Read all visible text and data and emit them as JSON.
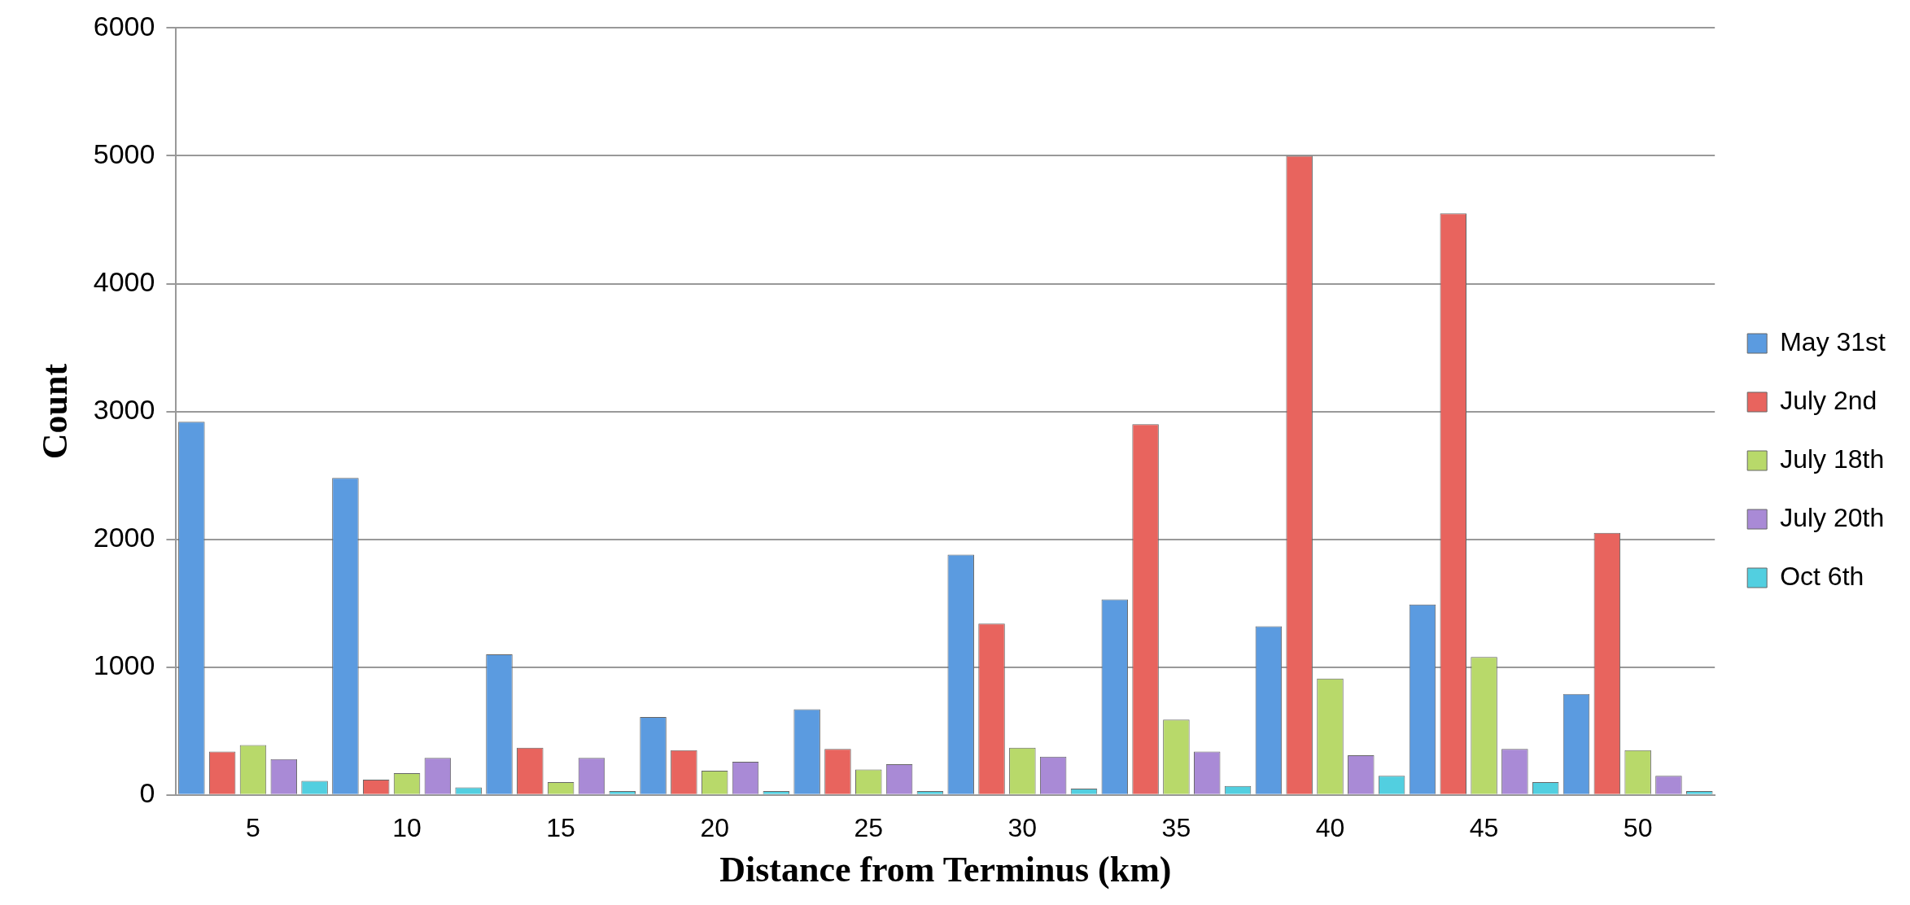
{
  "chart_data": {
    "type": "bar",
    "xlabel": "Distance from Terminus (km)",
    "ylabel": "Count",
    "categories": [
      "5",
      "10",
      "15",
      "20",
      "25",
      "30",
      "35",
      "40",
      "45",
      "50"
    ],
    "series": [
      {
        "name": "May 31st",
        "color": "#5b9be0",
        "values": [
          2920,
          2480,
          1100,
          610,
          670,
          1880,
          1530,
          1320,
          1490,
          790
        ]
      },
      {
        "name": "July 2nd",
        "color": "#e8645e",
        "values": [
          340,
          120,
          370,
          350,
          360,
          1340,
          2900,
          5000,
          4550,
          2050
        ]
      },
      {
        "name": "July 18th",
        "color": "#b8d96a",
        "values": [
          390,
          170,
          100,
          190,
          200,
          370,
          590,
          910,
          1080,
          350
        ]
      },
      {
        "name": "July 20th",
        "color": "#a98ad6",
        "values": [
          280,
          290,
          290,
          260,
          240,
          300,
          340,
          310,
          360,
          150
        ]
      },
      {
        "name": "Oct 6th",
        "color": "#52cfe0",
        "values": [
          110,
          60,
          30,
          30,
          30,
          50,
          70,
          150,
          100,
          30
        ]
      }
    ],
    "ylim": [
      0,
      6000
    ],
    "yticks": [
      0,
      1000,
      2000,
      3000,
      4000,
      5000,
      6000
    ],
    "grid": "y",
    "legend": "right"
  }
}
